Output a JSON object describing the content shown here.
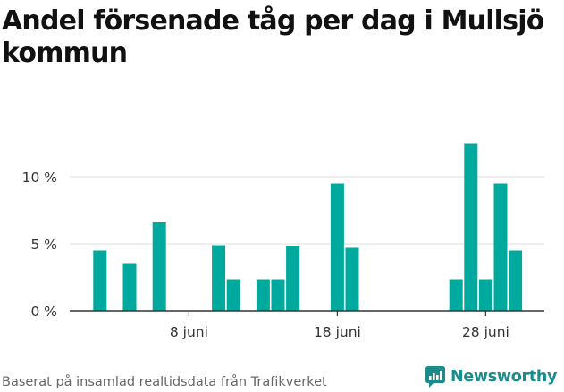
{
  "title": "Andel försenade tåg per dag i Mullsjö kommun",
  "source": "Baserat på insamlad realtidsdata från Trafikverket",
  "brand": {
    "name": "Newsworthy",
    "icon": "newsworthy-logo-icon",
    "color": "#1a8c8c"
  },
  "chart_data": {
    "type": "bar",
    "title": "Andel försenade tåg per dag i Mullsjö kommun",
    "xlabel": "",
    "ylabel": "",
    "x_unit": "day of June",
    "x": [
      1,
      2,
      3,
      4,
      5,
      6,
      7,
      8,
      9,
      10,
      11,
      12,
      13,
      14,
      15,
      16,
      17,
      18,
      19,
      20,
      21,
      22,
      23,
      24,
      25,
      26,
      27,
      28,
      29,
      30
    ],
    "values": [
      0,
      4.5,
      0,
      3.5,
      0,
      6.6,
      0,
      0,
      0,
      4.9,
      2.3,
      0,
      2.3,
      2.3,
      4.8,
      0,
      0,
      9.5,
      4.7,
      0,
      0,
      0,
      0,
      0,
      0,
      2.3,
      12.5,
      2.3,
      9.5,
      4.5
    ],
    "ylim": [
      0,
      13
    ],
    "yticks": [
      0,
      5,
      10
    ],
    "ytick_labels": [
      "0 %",
      "5 %",
      "10 %"
    ],
    "xticks": [
      8,
      18,
      28
    ],
    "xtick_labels": [
      "8 juni",
      "18 juni",
      "28 juni"
    ],
    "bar_color": "#00a99d",
    "grid": true,
    "legend": false
  }
}
